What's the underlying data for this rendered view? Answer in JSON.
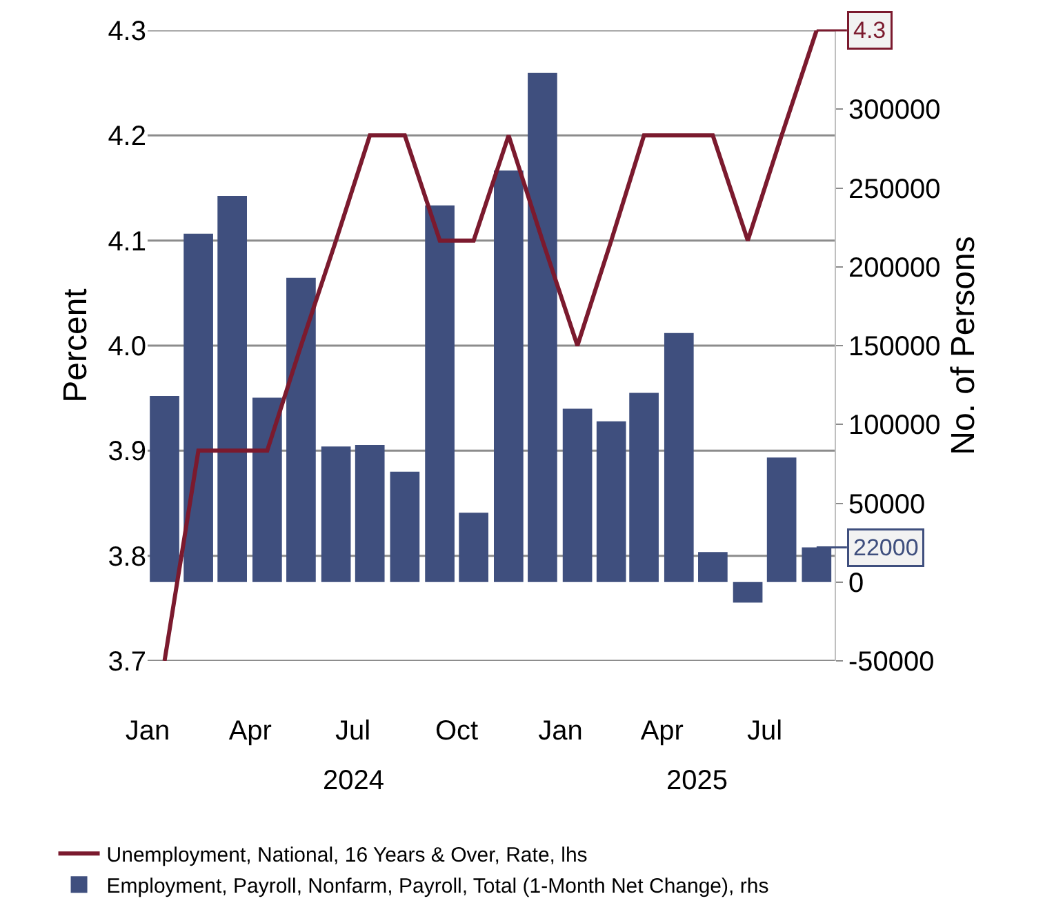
{
  "chart_data": {
    "type": "bar",
    "x": [
      "2024-01-16",
      "2024-02-15",
      "2024-03-16",
      "2024-04-16",
      "2024-05-16",
      "2024-06-16",
      "2024-07-16",
      "2024-08-16",
      "2024-09-16",
      "2024-10-16",
      "2024-11-16",
      "2024-12-16",
      "2025-01-16",
      "2025-02-15",
      "2025-03-16",
      "2025-04-16",
      "2025-05-16",
      "2025-06-16",
      "2025-07-16",
      "2025-08-16"
    ],
    "annotations": [
      "2024",
      "2025"
    ],
    "series": [
      {
        "name": "Unemployment, National, 16 Years & Over, Rate, lhs",
        "type": "line",
        "color": "#7b1a2e",
        "values": [
          3.7,
          3.9,
          3.9,
          3.9,
          4.0,
          4.1,
          4.2,
          4.2,
          4.1,
          4.1,
          4.2,
          4.1,
          4.0,
          4.1,
          4.2,
          4.2,
          4.2,
          4.1,
          4.2,
          4.3
        ],
        "value_labels": [
          null,
          null,
          null,
          null,
          null,
          null,
          null,
          null,
          null,
          null,
          null,
          null,
          null,
          null,
          null,
          null,
          null,
          null,
          null,
          "4.3"
        ]
      },
      {
        "name": "Employment, Payroll, Nonfarm, Payroll, Total (1-Month Net Change), rhs",
        "axis": "y2",
        "color": "#3f4f7e",
        "values": [
          118000,
          221000,
          245000,
          117000,
          193000,
          86000,
          87000,
          70000,
          239000,
          44000,
          261000,
          323000,
          110000,
          102000,
          120000,
          158000,
          19000,
          -13000,
          79000,
          22000
        ],
        "value_labels": [
          null,
          null,
          null,
          null,
          null,
          null,
          null,
          null,
          null,
          null,
          null,
          null,
          null,
          null,
          null,
          null,
          null,
          null,
          null,
          "22000"
        ]
      }
    ],
    "ylabel": "Percent",
    "y2label": "No. of Persons",
    "xlim": [
      "2024-01-01",
      "2025-09-01"
    ],
    "xticks": [
      {
        "value": "2024-01-01",
        "label": "Jan"
      },
      {
        "value": "2024-04-01",
        "label": "Apr"
      },
      {
        "value": "2024-07-01",
        "label": "Jul"
      },
      {
        "value": "2024-10-01",
        "label": "Oct"
      },
      {
        "value": "2025-01-01",
        "label": "Jan"
      },
      {
        "value": "2025-04-01",
        "label": "Apr"
      },
      {
        "value": "2025-07-01",
        "label": "Jul"
      }
    ],
    "ylim": [
      3.7,
      4.3
    ],
    "yticks": [
      3.7,
      3.8,
      3.9,
      {
        "value": 4.0,
        "label": "4.0"
      },
      4.1,
      4.2,
      4.3
    ],
    "y2lim": [
      -50000,
      350000
    ],
    "y2ticks": [
      -50000,
      0,
      50000,
      100000,
      150000,
      200000,
      250000,
      300000
    ],
    "grid": "y",
    "legend": "bottom"
  }
}
